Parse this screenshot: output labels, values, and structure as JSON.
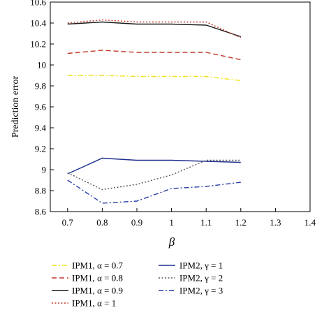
{
  "chart_data": {
    "type": "line",
    "xlabel": "β",
    "ylabel": "Prediction error",
    "xlim": [
      0.65,
      1.4
    ],
    "ylim": [
      8.6,
      10.6
    ],
    "x_ticks": [
      "0.7",
      "0.8",
      "0.9",
      "1",
      "1.1",
      "1.2",
      "1.3",
      "1.4"
    ],
    "y_ticks": [
      "8.6",
      "8.8",
      "9",
      "9.2",
      "9.4",
      "9.6",
      "9.8",
      "10",
      "10.2",
      "10.4",
      "10.6"
    ],
    "grid": false,
    "legend_position": "bottom",
    "x": [
      0.7,
      0.8,
      0.9,
      1.0,
      1.1,
      1.2
    ],
    "series": [
      {
        "name": "IPM1, α = 0.7",
        "color": "#f2e21a",
        "dash": "dash-dot",
        "values": [
          9.9,
          9.9,
          9.89,
          9.89,
          9.89,
          9.85
        ]
      },
      {
        "name": "IPM1, α = 0.8",
        "color": "#c0392b",
        "dash": "dashed",
        "values": [
          10.11,
          10.14,
          10.12,
          10.12,
          10.12,
          10.05
        ]
      },
      {
        "name": "IPM1, α = 0.9",
        "color": "#1a1a1a",
        "dash": "solid",
        "values": [
          10.39,
          10.41,
          10.39,
          10.39,
          10.38,
          10.27
        ]
      },
      {
        "name": "IPM1, α = 1",
        "color": "#c0392b",
        "dash": "dotted",
        "values": [
          10.4,
          10.43,
          10.41,
          10.41,
          10.41,
          10.26
        ]
      },
      {
        "name": "IPM2, γ = 1",
        "color": "#1f2f8f",
        "dash": "solid",
        "values": [
          8.96,
          9.11,
          9.09,
          9.09,
          9.08,
          9.07
        ]
      },
      {
        "name": "IPM2, γ = 2",
        "color": "#555555",
        "dash": "dotted",
        "values": [
          8.97,
          8.81,
          8.86,
          8.95,
          9.09,
          9.09
        ]
      },
      {
        "name": "IPM2, γ = 3",
        "color": "#2a3fa8",
        "dash": "dash-dot",
        "values": [
          8.9,
          8.68,
          8.7,
          8.82,
          8.84,
          8.88
        ]
      }
    ]
  }
}
